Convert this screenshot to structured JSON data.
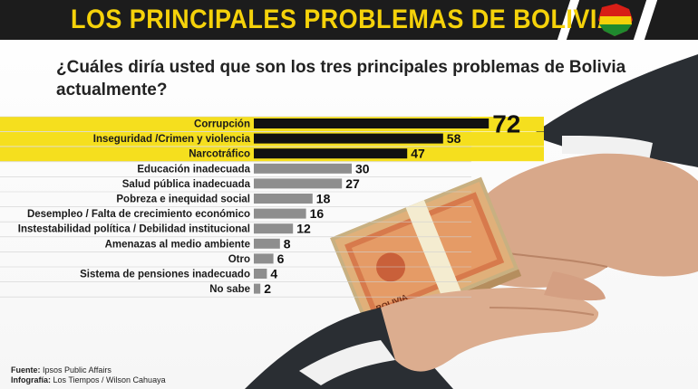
{
  "header": {
    "title": "LOS PRINCIPALES PROBLEMAS DE BOLIVIA"
  },
  "question": "¿Cuáles diría usted que son los tres principales problemas de Bolivia actualmente?",
  "banknote_text": "BOLIVIA",
  "colors": {
    "title_text": "#f5d20a",
    "title_bar": "#1c1c1c",
    "highlight_band": "#f5df1e",
    "top_bar": "#111111",
    "other_bar": "#8e8e8e"
  },
  "chart_data": {
    "type": "bar",
    "orientation": "horizontal",
    "categories": [
      "Corrupción",
      "Inseguridad /Crimen y violencia",
      "Narcotráfico",
      "Educación inadecuada",
      "Salud pública inadecuada",
      "Pobreza e inequidad social",
      "Desempleo / Falta de crecimiento económico",
      "Instestabilidad política / Debilidad institucional",
      "Amenazas al medio ambiente",
      "Otro",
      "Sistema de pensiones inadecuado",
      "No sabe"
    ],
    "values": [
      72,
      58,
      47,
      30,
      27,
      18,
      16,
      12,
      8,
      6,
      4,
      2
    ],
    "highlighted_count": 3,
    "xlim": [
      0,
      100
    ],
    "title": "",
    "xlabel": "",
    "ylabel": "",
    "grid": false,
    "legend": "none"
  },
  "footer": {
    "source_label": "Fuente:",
    "source_value": "Ipsos Public Affairs",
    "credit_label": "Infografía:",
    "credit_value": "Los Tiempos / Wilson Cahuaya"
  }
}
